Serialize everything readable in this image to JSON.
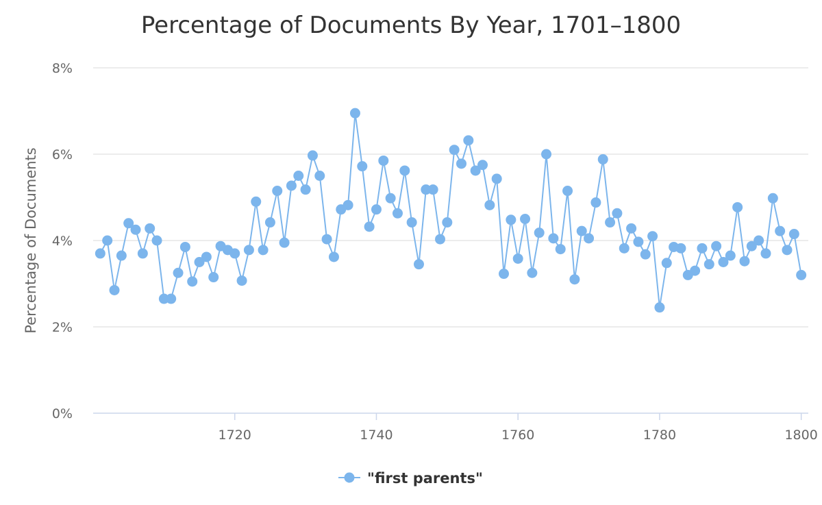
{
  "chart_data": {
    "type": "line",
    "title": "Percentage of Documents By Year, 1701–1800",
    "xlabel": "",
    "ylabel": "Percentage of Documents",
    "xlim": [
      1700,
      1801
    ],
    "ylim": [
      0,
      8
    ],
    "x_ticks": [
      1720,
      1740,
      1760,
      1780,
      1800
    ],
    "x_tick_labels": [
      "1720",
      "1740",
      "1760",
      "1780",
      "1800"
    ],
    "y_ticks": [
      0,
      2,
      4,
      6,
      8
    ],
    "y_tick_labels": [
      "0%",
      "2%",
      "4%",
      "6%",
      "8%"
    ],
    "grid": true,
    "legend_position": "bottom-center",
    "colors": {
      "series": "#7cb5ec",
      "grid": "#e6e6e6",
      "axis": "#ccd6eb"
    },
    "series": [
      {
        "name": "\"first parents\"",
        "x": [
          1701,
          1702,
          1703,
          1704,
          1705,
          1706,
          1707,
          1708,
          1709,
          1710,
          1711,
          1712,
          1713,
          1714,
          1715,
          1716,
          1717,
          1718,
          1719,
          1720,
          1721,
          1722,
          1723,
          1724,
          1725,
          1726,
          1727,
          1728,
          1729,
          1730,
          1731,
          1732,
          1733,
          1734,
          1735,
          1736,
          1737,
          1738,
          1739,
          1740,
          1741,
          1742,
          1743,
          1744,
          1745,
          1746,
          1747,
          1748,
          1749,
          1750,
          1751,
          1752,
          1753,
          1754,
          1755,
          1756,
          1757,
          1758,
          1759,
          1760,
          1761,
          1762,
          1763,
          1764,
          1765,
          1766,
          1767,
          1768,
          1769,
          1770,
          1771,
          1772,
          1773,
          1774,
          1775,
          1776,
          1777,
          1778,
          1779,
          1780,
          1781,
          1782,
          1783,
          1784,
          1785,
          1786,
          1787,
          1788,
          1789,
          1790,
          1791,
          1792,
          1793,
          1794,
          1795,
          1796,
          1797,
          1798,
          1799,
          1800
        ],
        "values": [
          3.7,
          4.0,
          2.85,
          3.65,
          4.4,
          4.25,
          3.7,
          4.28,
          4.0,
          2.65,
          2.65,
          3.25,
          3.85,
          3.05,
          3.5,
          3.62,
          3.15,
          3.87,
          3.78,
          3.7,
          3.07,
          3.78,
          4.9,
          3.78,
          4.42,
          5.15,
          3.95,
          5.27,
          5.5,
          5.18,
          5.97,
          5.5,
          4.03,
          3.62,
          4.72,
          4.82,
          6.95,
          5.72,
          4.32,
          4.72,
          5.85,
          4.98,
          4.63,
          5.62,
          4.42,
          3.45,
          5.18,
          5.18,
          4.03,
          4.42,
          6.1,
          5.78,
          6.32,
          5.62,
          5.75,
          4.82,
          5.43,
          3.23,
          4.48,
          3.58,
          4.5,
          3.25,
          4.18,
          6.0,
          4.05,
          3.8,
          5.15,
          3.1,
          4.22,
          4.05,
          4.88,
          5.88,
          4.42,
          4.63,
          3.82,
          4.28,
          3.97,
          3.68,
          4.1,
          2.45,
          3.48,
          3.85,
          3.82,
          3.2,
          3.3,
          3.82,
          3.45,
          3.87,
          3.5,
          3.65,
          4.77,
          3.52,
          3.87,
          4.0,
          3.7,
          4.98,
          4.22,
          3.78,
          4.15,
          3.2
        ]
      }
    ]
  }
}
